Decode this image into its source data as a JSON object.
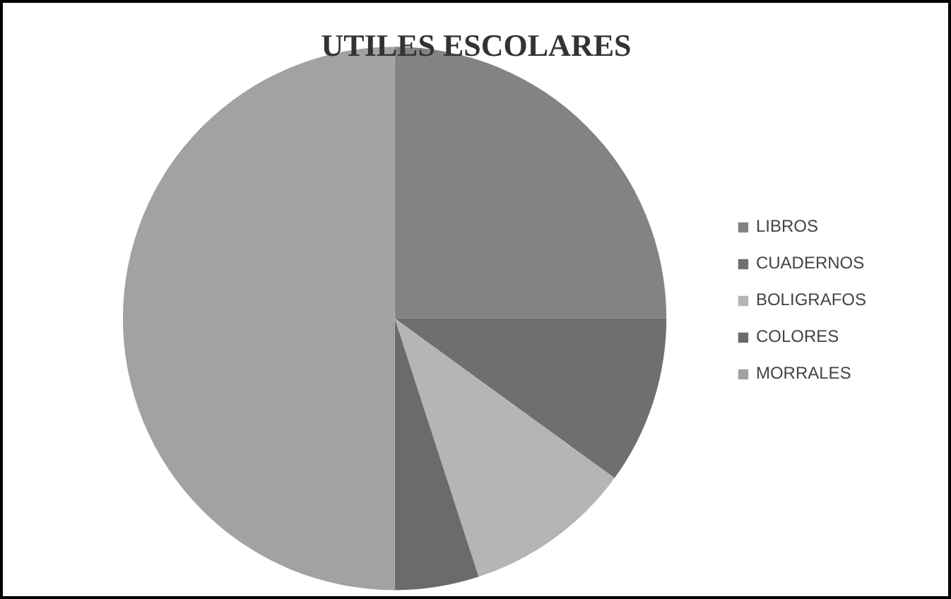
{
  "chart_data": {
    "type": "pie",
    "title": "UTILES ESCOLARES",
    "categories": [
      "LIBROS",
      "CUADERNOS",
      "BOLIGRAFOS",
      "COLORES",
      "MORRALES"
    ],
    "values": [
      25,
      10,
      10,
      5,
      50
    ],
    "colors": [
      "#838383",
      "#6f6f6f",
      "#b5b5b5",
      "#6b6b6b",
      "#a2a2a2"
    ],
    "legend": "right"
  }
}
